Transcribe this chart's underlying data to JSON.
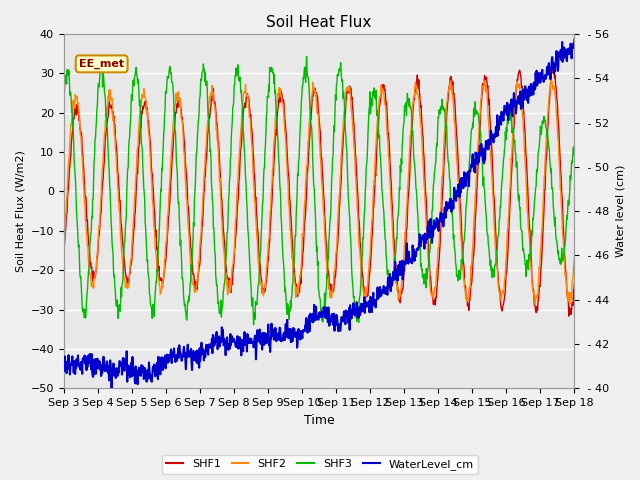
{
  "title": "Soil Heat Flux",
  "ylabel_left": "Soil Heat Flux (W/m2)",
  "ylabel_right": "Water level (cm)",
  "xlabel": "Time",
  "annotation": "EE_met",
  "ylim_left": [
    -50,
    40
  ],
  "ylim_right": [
    40,
    56
  ],
  "x_tick_labels": [
    "Sep 3",
    "Sep 4",
    "Sep 5",
    "Sep 6",
    "Sep 7",
    "Sep 8",
    "Sep 9",
    "Sep 10",
    "Sep 11",
    "Sep 12",
    "Sep 13",
    "Sep 14",
    "Sep 15",
    "Sep 16",
    "Sep 17",
    "Sep 18"
  ],
  "colors": {
    "SHF1": "#cc0000",
    "SHF2": "#ff8800",
    "SHF3": "#00bb00",
    "WaterLevel": "#0000cc"
  },
  "background_color": "#f0f0f0",
  "plot_bg_color": "#e8e8e8",
  "grid_color": "#ffffff",
  "yticks_left": [
    -50,
    -40,
    -30,
    -20,
    -10,
    0,
    10,
    20,
    30,
    40
  ],
  "yticks_right": [
    40,
    42,
    44,
    46,
    48,
    50,
    52,
    54,
    56
  ]
}
